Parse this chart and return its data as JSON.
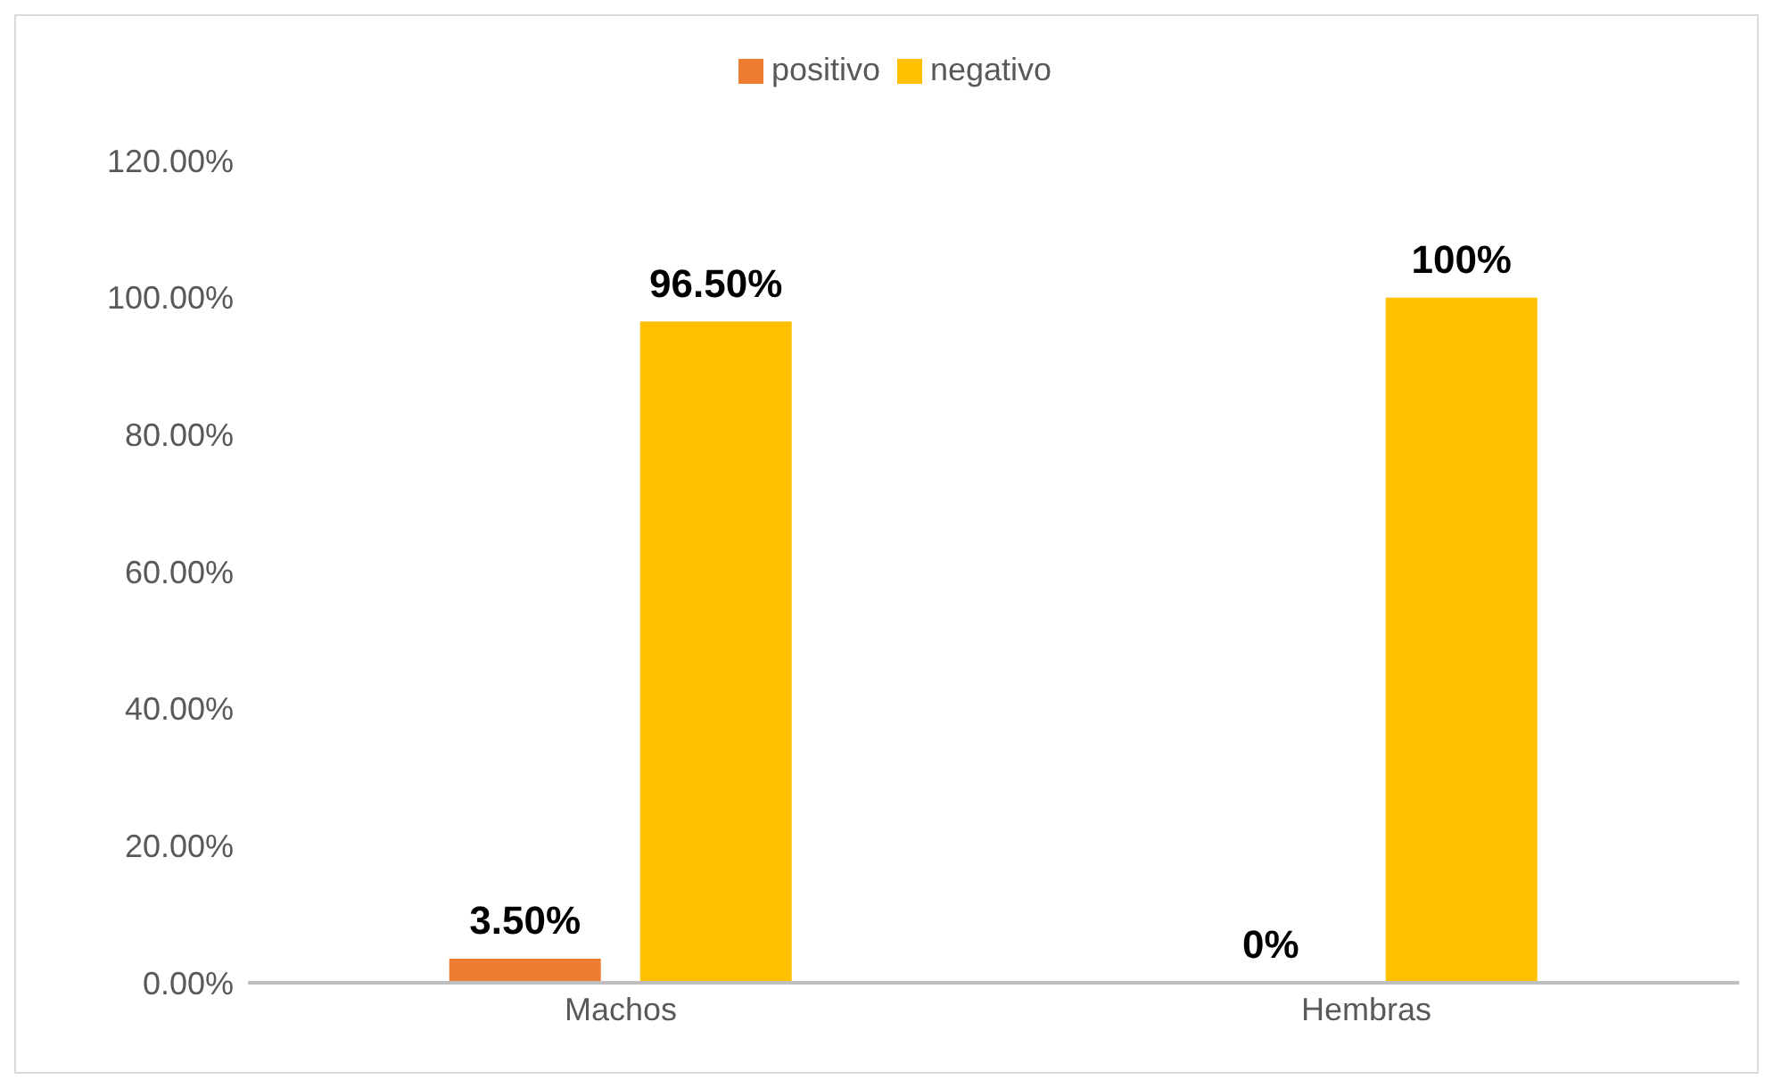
{
  "chart_data": {
    "type": "bar",
    "categories": [
      "Machos",
      "Hembras"
    ],
    "series": [
      {
        "name": "positivo",
        "color": "#ed7d31",
        "values": [
          3.5,
          0
        ],
        "value_labels": [
          "3.50%",
          "0%"
        ]
      },
      {
        "name": "negativo",
        "color": "#ffc000",
        "values": [
          96.5,
          100
        ],
        "value_labels": [
          "96.50%",
          "100%"
        ]
      }
    ],
    "ylim": [
      0,
      120
    ],
    "yticks": [
      {
        "value": 0,
        "label": "0.00%"
      },
      {
        "value": 20,
        "label": "20.00%"
      },
      {
        "value": 40,
        "label": "40.00%"
      },
      {
        "value": 60,
        "label": "60.00%"
      },
      {
        "value": 80,
        "label": "80.00%"
      },
      {
        "value": 100,
        "label": "100.00%"
      },
      {
        "value": 120,
        "label": "120.00%"
      }
    ],
    "grid": false,
    "legend": "top"
  }
}
